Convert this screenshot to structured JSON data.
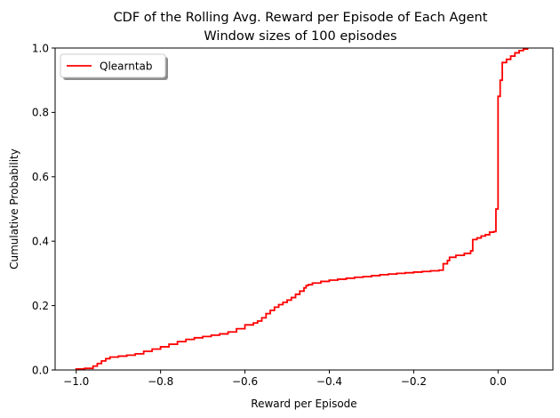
{
  "chart_data": {
    "type": "line",
    "title": "CDF of the Rolling Avg. Reward per Episode of Each Agent",
    "subtitle": "Window sizes of 100 episodes",
    "xlabel": "Reward per Episode",
    "ylabel": "Cumulative Probability",
    "xlim": [
      -1.05,
      0.13
    ],
    "ylim": [
      0,
      1
    ],
    "xticks": [
      -1.0,
      -0.8,
      -0.6,
      -0.4,
      -0.2,
      0.0
    ],
    "xtick_labels": [
      "−1.0",
      "−0.8",
      "−0.6",
      "−0.4",
      "−0.2",
      "0.0"
    ],
    "yticks": [
      0.0,
      0.2,
      0.4,
      0.6,
      0.8,
      1.0
    ],
    "ytick_labels": [
      "0.0",
      "0.2",
      "0.4",
      "0.6",
      "0.8",
      "1.0"
    ],
    "grid": false,
    "legend_position": "top-left",
    "series": [
      {
        "name": "Qlearntab",
        "color": "#ff0000",
        "step": true,
        "x": [
          -1.0,
          -0.98,
          -0.96,
          -0.95,
          -0.94,
          -0.93,
          -0.92,
          -0.9,
          -0.88,
          -0.86,
          -0.84,
          -0.82,
          -0.8,
          -0.78,
          -0.76,
          -0.74,
          -0.72,
          -0.7,
          -0.68,
          -0.66,
          -0.64,
          -0.62,
          -0.6,
          -0.58,
          -0.57,
          -0.56,
          -0.55,
          -0.54,
          -0.53,
          -0.52,
          -0.51,
          -0.5,
          -0.49,
          -0.48,
          -0.47,
          -0.46,
          -0.455,
          -0.45,
          -0.44,
          -0.42,
          -0.4,
          -0.38,
          -0.36,
          -0.34,
          -0.32,
          -0.3,
          -0.28,
          -0.26,
          -0.24,
          -0.22,
          -0.2,
          -0.18,
          -0.16,
          -0.14,
          -0.13,
          -0.12,
          -0.115,
          -0.1,
          -0.08,
          -0.065,
          -0.06,
          -0.05,
          -0.04,
          -0.03,
          -0.02,
          -0.01,
          -0.005,
          0.0,
          0.005,
          0.01,
          0.02,
          0.03,
          0.04,
          0.05,
          0.06,
          0.07
        ],
        "y": [
          0.003,
          0.005,
          0.012,
          0.02,
          0.028,
          0.035,
          0.04,
          0.043,
          0.046,
          0.05,
          0.058,
          0.065,
          0.072,
          0.08,
          0.088,
          0.095,
          0.1,
          0.104,
          0.108,
          0.112,
          0.118,
          0.128,
          0.14,
          0.146,
          0.152,
          0.162,
          0.175,
          0.185,
          0.195,
          0.203,
          0.21,
          0.217,
          0.225,
          0.235,
          0.245,
          0.255,
          0.262,
          0.265,
          0.27,
          0.275,
          0.279,
          0.282,
          0.285,
          0.288,
          0.29,
          0.293,
          0.296,
          0.298,
          0.3,
          0.302,
          0.304,
          0.306,
          0.308,
          0.31,
          0.33,
          0.34,
          0.35,
          0.356,
          0.362,
          0.37,
          0.405,
          0.41,
          0.416,
          0.42,
          0.428,
          0.43,
          0.5,
          0.85,
          0.9,
          0.955,
          0.965,
          0.975,
          0.985,
          0.992,
          0.997,
          1.0
        ]
      }
    ]
  }
}
